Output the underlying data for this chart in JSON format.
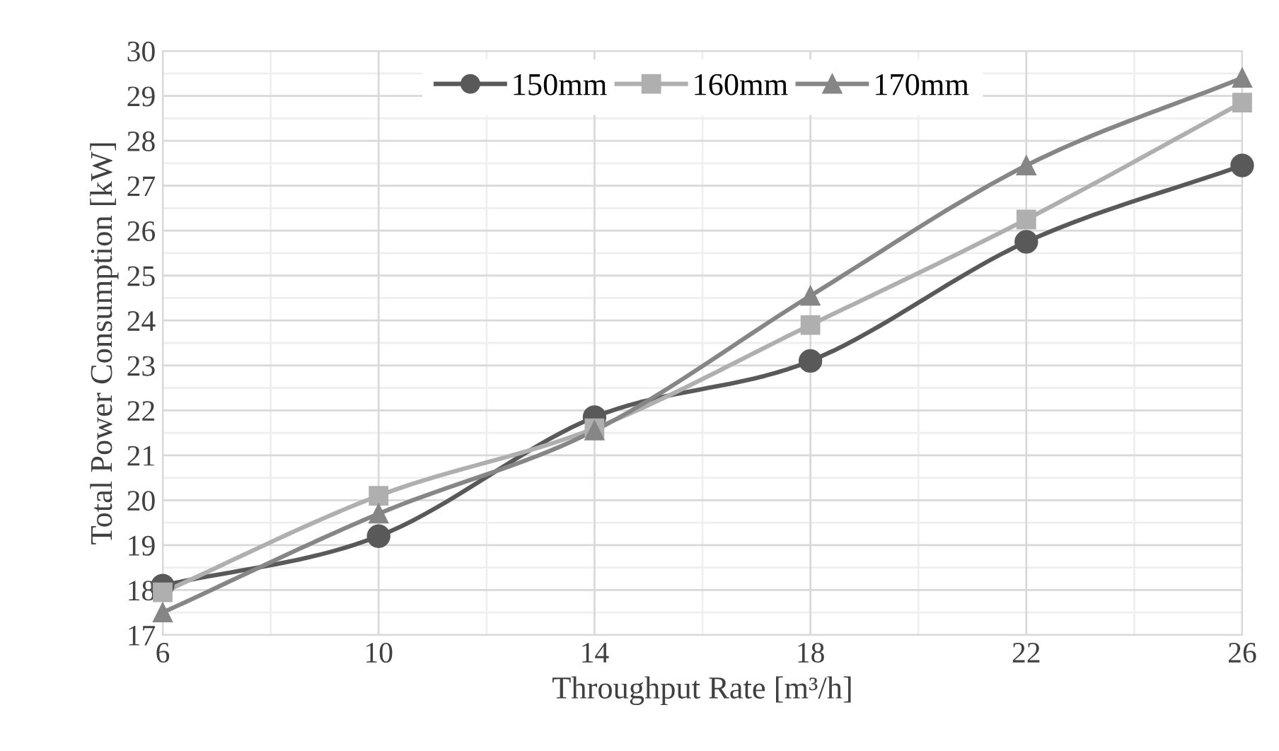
{
  "chart_data": {
    "type": "line",
    "xlabel": "Throughput Rate [m³/h]",
    "ylabel": "Total Power Consumption [kW]",
    "x": [
      6,
      10,
      14,
      18,
      22,
      26
    ],
    "series": [
      {
        "name": "150mm",
        "color": "#595959",
        "marker": "circle",
        "values": [
          18.1,
          19.2,
          21.85,
          23.1,
          25.75,
          27.45
        ]
      },
      {
        "name": "160mm",
        "color": "#afafaf",
        "marker": "square",
        "values": [
          17.95,
          20.1,
          21.6,
          23.9,
          26.25,
          28.85
        ]
      },
      {
        "name": "170mm",
        "color": "#868686",
        "marker": "triangle",
        "values": [
          17.5,
          19.7,
          21.55,
          24.55,
          27.45,
          29.4
        ]
      }
    ],
    "xlim": [
      6,
      26
    ],
    "xticks": [
      6,
      10,
      14,
      18,
      22,
      26
    ],
    "ylim": [
      17,
      30
    ],
    "yticks": [
      17,
      18,
      19,
      20,
      21,
      22,
      23,
      24,
      25,
      26,
      27,
      28,
      29,
      30
    ],
    "grid": true,
    "legend": "top",
    "line_style": "solid"
  }
}
